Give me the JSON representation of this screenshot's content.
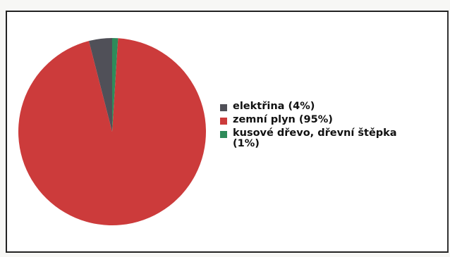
{
  "chart_data": {
    "type": "pie",
    "title": "",
    "categories": [
      "elektřina",
      "zemní plyn",
      "kusové dřevo, dřevní štěpka"
    ],
    "values": [
      4,
      95,
      1
    ],
    "colors": [
      "#505058",
      "#cc3b3b",
      "#2e8b5a"
    ],
    "legend": [
      {
        "label": "elektřina (4%)",
        "color": "#505058"
      },
      {
        "label": "zemní plyn (95%)",
        "color": "#cc3b3b"
      },
      {
        "label": "kusové dřevo, dřevní štěpka (1%)",
        "color": "#2e8b5a"
      }
    ],
    "legend_position": "right",
    "start_angle_deg": -90,
    "direction": "counterclockwise"
  }
}
